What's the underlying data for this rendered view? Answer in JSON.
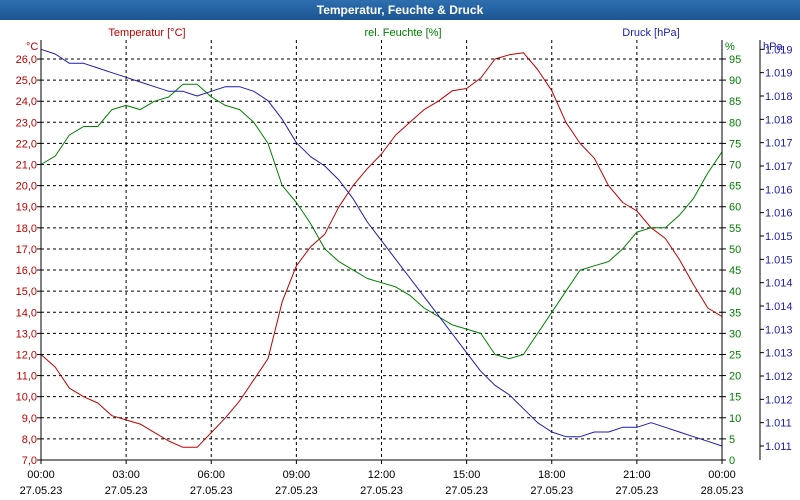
{
  "window": {
    "title": "Temperatur, Feuchte & Druck"
  },
  "colors": {
    "temperature": "#c00000",
    "humidity": "#008000",
    "pressure": "#1c1cb0",
    "grid": "#000000",
    "text": "#000000"
  },
  "chart_data": {
    "type": "line",
    "title": "Temperatur, Feuchte & Druck",
    "x_ticks": [
      {
        "t": 0,
        "time": "00:00",
        "date": "27.05.23"
      },
      {
        "t": 3,
        "time": "03:00",
        "date": "27.05.23"
      },
      {
        "t": 6,
        "time": "06:00",
        "date": "27.05.23"
      },
      {
        "t": 9,
        "time": "09:00",
        "date": "27.05.23"
      },
      {
        "t": 12,
        "time": "12:00",
        "date": "27.05.23"
      },
      {
        "t": 15,
        "time": "15:00",
        "date": "27.05.23"
      },
      {
        "t": 18,
        "time": "18:00",
        "date": "27.05.23"
      },
      {
        "t": 21,
        "time": "21:00",
        "date": "27.05.23"
      },
      {
        "t": 24,
        "time": "00:00",
        "date": "28.05.23"
      }
    ],
    "x_range": [
      0,
      24
    ],
    "axes": {
      "temperature": {
        "label": "Temperatur [°C]",
        "unit": "°C",
        "range": [
          7.0,
          26.9
        ],
        "ticks": [
          "7,0",
          "8,0",
          "9,0",
          "10,0",
          "11,0",
          "12,0",
          "13,0",
          "14,0",
          "15,0",
          "16,0",
          "17,0",
          "18,0",
          "19,0",
          "20,0",
          "21,0",
          "22,0",
          "23,0",
          "24,0",
          "25,0",
          "26,0"
        ]
      },
      "humidity": {
        "label": "rel. Feuchte [%]",
        "unit": "%",
        "range": [
          0,
          99.5
        ],
        "ticks": [
          "0",
          "5",
          "10",
          "15",
          "20",
          "25",
          "30",
          "35",
          "40",
          "45",
          "50",
          "55",
          "60",
          "65",
          "70",
          "75",
          "80",
          "85",
          "90",
          "95"
        ]
      },
      "pressure": {
        "label": "Druck [hPa]",
        "unit": "hPa",
        "range": [
          1010.5,
          1019.5
        ],
        "ticks": [
          {
            "v": 1010.8,
            "label": "1.011"
          },
          {
            "v": 1011.3,
            "label": "1.011"
          },
          {
            "v": 1011.8,
            "label": "1.012"
          },
          {
            "v": 1012.3,
            "label": "1.012"
          },
          {
            "v": 1012.8,
            "label": "1.013"
          },
          {
            "v": 1013.3,
            "label": "1.013"
          },
          {
            "v": 1013.8,
            "label": "1.014"
          },
          {
            "v": 1014.3,
            "label": "1.014"
          },
          {
            "v": 1014.8,
            "label": "1.015"
          },
          {
            "v": 1015.3,
            "label": "1.015"
          },
          {
            "v": 1015.8,
            "label": "1.016"
          },
          {
            "v": 1016.3,
            "label": "1.016"
          },
          {
            "v": 1016.8,
            "label": "1.017"
          },
          {
            "v": 1017.3,
            "label": "1.017"
          },
          {
            "v": 1017.8,
            "label": "1.018"
          },
          {
            "v": 1018.3,
            "label": "1.018"
          },
          {
            "v": 1018.8,
            "label": "1.019"
          },
          {
            "v": 1019.3,
            "label": "1.019"
          }
        ]
      }
    },
    "series": [
      {
        "name": "Temperatur",
        "axis": "temperature",
        "x": [
          0,
          0.5,
          1,
          1.5,
          2,
          2.5,
          3,
          3.5,
          4,
          4.5,
          5,
          5.5,
          6,
          6.5,
          7,
          7.5,
          8,
          8.5,
          9,
          9.5,
          10,
          10.5,
          11,
          11.5,
          12,
          12.5,
          13,
          13.5,
          14,
          14.5,
          15,
          15.5,
          16,
          16.5,
          17,
          17.5,
          18,
          18.5,
          19,
          19.5,
          20,
          20.5,
          21,
          21.5,
          22,
          22.5,
          23,
          23.5,
          24
        ],
        "values": [
          12.0,
          11.4,
          10.4,
          10.0,
          9.7,
          9.1,
          8.9,
          8.7,
          8.3,
          7.9,
          7.6,
          7.6,
          8.3,
          9.0,
          9.8,
          10.8,
          11.8,
          14.5,
          16.2,
          17.1,
          17.7,
          19.0,
          20.0,
          20.8,
          21.5,
          22.4,
          23.0,
          23.6,
          24.0,
          24.5,
          24.6,
          25.1,
          26.0,
          26.2,
          26.3,
          25.5,
          24.5,
          23.0,
          22.0,
          21.3,
          20.0,
          19.2,
          18.8,
          18.0,
          17.5,
          16.5,
          15.3,
          14.2,
          13.8
        ]
      },
      {
        "name": "rel. Feuchte",
        "axis": "humidity",
        "x": [
          0,
          0.5,
          1,
          1.5,
          2,
          2.5,
          3,
          3.5,
          4,
          4.5,
          5,
          5.5,
          6,
          6.5,
          7,
          7.5,
          8,
          8.5,
          9,
          9.5,
          10,
          10.5,
          11,
          11.5,
          12,
          12.5,
          13,
          13.5,
          14,
          14.5,
          15,
          15.5,
          16,
          16.5,
          17,
          17.5,
          18,
          18.5,
          19,
          19.5,
          20,
          20.5,
          21,
          21.5,
          22,
          22.5,
          23,
          23.5,
          24
        ],
        "values": [
          70,
          72,
          77,
          79,
          79,
          83,
          84,
          83,
          85,
          86,
          89,
          89,
          86,
          84,
          83,
          80,
          75,
          65,
          61,
          56,
          50,
          47,
          45,
          43,
          42,
          41,
          39,
          36,
          34,
          32,
          31,
          30,
          25,
          24,
          25,
          30,
          35,
          40,
          45,
          46,
          47,
          50,
          54,
          55,
          55,
          58,
          62,
          68,
          73
        ]
      },
      {
        "name": "Druck",
        "axis": "pressure",
        "x": [
          0,
          0.5,
          1,
          1.5,
          2,
          2.5,
          3,
          3.5,
          4,
          4.5,
          5,
          5.5,
          6,
          6.5,
          7,
          7.5,
          8,
          8.5,
          9,
          9.5,
          10,
          10.5,
          11,
          11.5,
          12,
          12.5,
          13,
          13.5,
          14,
          14.5,
          15,
          15.5,
          16,
          16.5,
          17,
          17.5,
          18,
          18.5,
          19,
          19.5,
          20,
          20.5,
          21,
          21.5,
          22,
          22.5,
          23,
          23.5,
          24
        ],
        "values": [
          1019.3,
          1019.2,
          1019.0,
          1019.0,
          1018.9,
          1018.8,
          1018.7,
          1018.6,
          1018.5,
          1018.4,
          1018.4,
          1018.3,
          1018.4,
          1018.5,
          1018.5,
          1018.4,
          1018.2,
          1017.8,
          1017.3,
          1017.0,
          1016.8,
          1016.5,
          1016.1,
          1015.6,
          1015.2,
          1014.8,
          1014.4,
          1014.0,
          1013.6,
          1013.2,
          1012.8,
          1012.4,
          1012.1,
          1011.9,
          1011.6,
          1011.3,
          1011.1,
          1011.0,
          1011.0,
          1011.1,
          1011.1,
          1011.2,
          1011.2,
          1011.3,
          1011.2,
          1011.1,
          1011.0,
          1010.9,
          1010.8
        ]
      }
    ]
  }
}
